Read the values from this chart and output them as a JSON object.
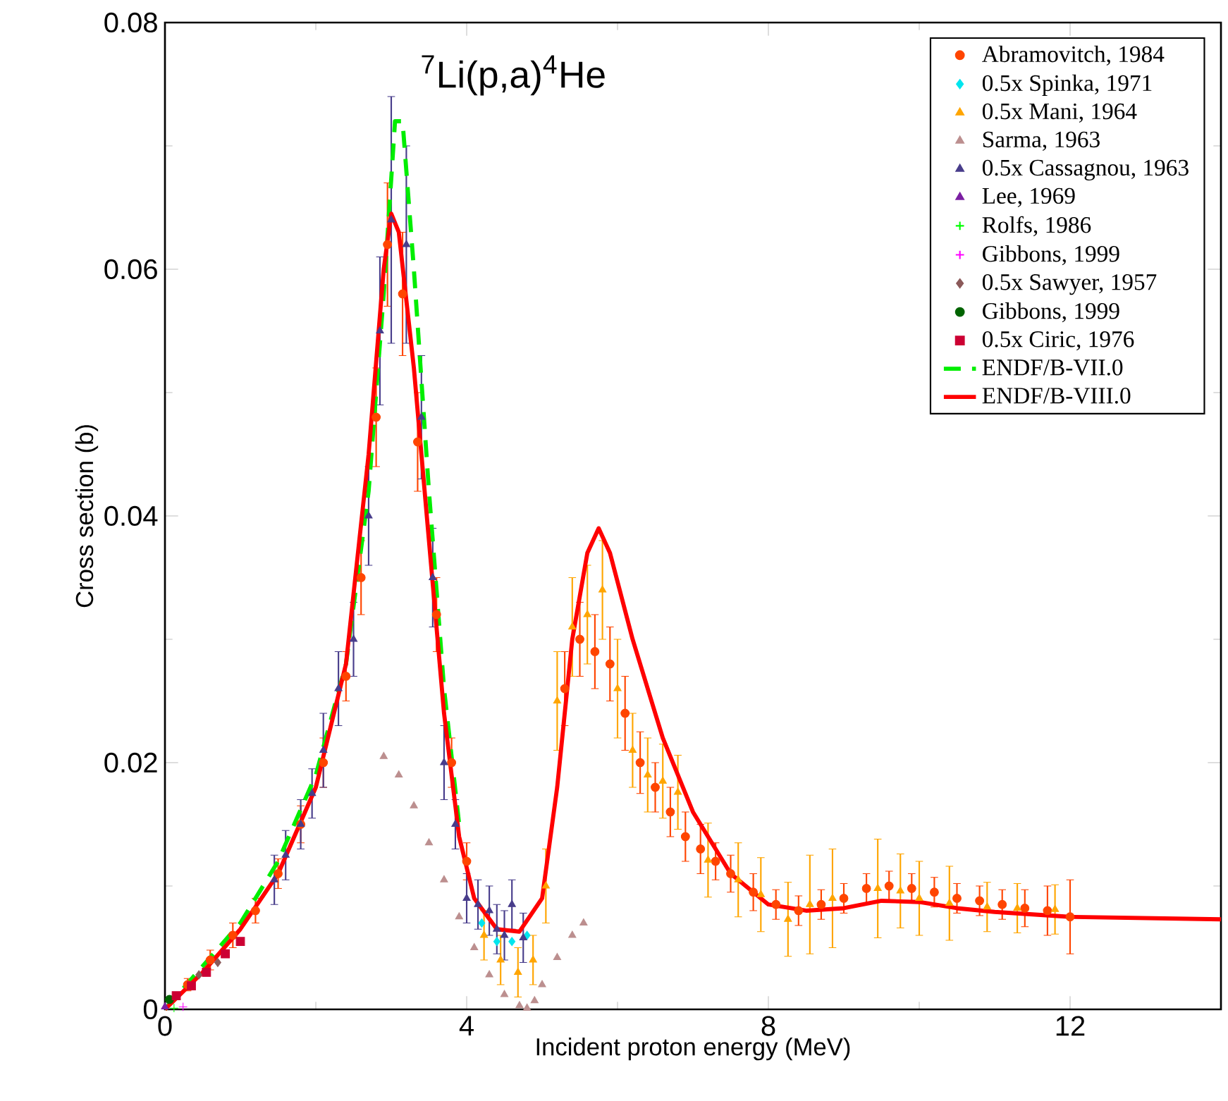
{
  "chart_data": {
    "type": "scatter",
    "title": "$^{7}$Li(p,a)$^{4}$He",
    "xlabel": "Incident proton energy (MeV)",
    "ylabel": "Cross section (b)",
    "xlim": [
      0,
      14
    ],
    "xticks": [
      0,
      4,
      8,
      12
    ],
    "ylim": [
      0,
      0.08
    ],
    "yticks": [
      0,
      0.02,
      0.04,
      0.06,
      0.08
    ],
    "legend": "top right",
    "series": [
      {
        "name": "Abramovitch, 1984",
        "color": "#ff4500",
        "marker": "circle",
        "x": [
          0.3,
          0.6,
          0.9,
          1.2,
          1.5,
          1.8,
          2.1,
          2.4,
          2.6,
          2.8,
          2.95,
          3.15,
          3.35,
          3.6,
          3.8,
          4.0,
          5.3,
          5.5,
          5.7,
          5.9,
          6.1,
          6.3,
          6.5,
          6.7,
          6.9,
          7.1,
          7.3,
          7.5,
          7.8,
          8.1,
          8.4,
          8.7,
          9.0,
          9.3,
          9.6,
          9.9,
          10.2,
          10.5,
          10.8,
          11.1,
          11.4,
          11.7,
          12.0
        ],
        "values": [
          0.002,
          0.004,
          0.006,
          0.008,
          0.011,
          0.015,
          0.02,
          0.027,
          0.035,
          0.048,
          0.062,
          0.058,
          0.046,
          0.032,
          0.02,
          0.012,
          0.026,
          0.03,
          0.029,
          0.028,
          0.024,
          0.02,
          0.018,
          0.016,
          0.014,
          0.013,
          0.012,
          0.011,
          0.0095,
          0.0085,
          0.008,
          0.0085,
          0.009,
          0.0098,
          0.01,
          0.0098,
          0.0095,
          0.009,
          0.0088,
          0.0085,
          0.0082,
          0.008,
          0.0075
        ],
        "errors": [
          0.0005,
          0.0008,
          0.001,
          0.001,
          0.0012,
          0.0015,
          0.002,
          0.002,
          0.003,
          0.004,
          0.005,
          0.005,
          0.004,
          0.003,
          0.002,
          0.0015,
          0.003,
          0.003,
          0.003,
          0.003,
          0.003,
          0.0025,
          0.002,
          0.002,
          0.002,
          0.002,
          0.0015,
          0.0015,
          0.0015,
          0.0012,
          0.0012,
          0.0012,
          0.0012,
          0.0012,
          0.0012,
          0.0012,
          0.0012,
          0.0012,
          0.0012,
          0.0012,
          0.0015,
          0.002,
          0.003
        ]
      },
      {
        "name": "0.5x Spinka, 1971",
        "color": "#00e5ee",
        "marker": "diamond",
        "x": [
          4.2,
          4.4,
          4.6,
          4.8
        ],
        "values": [
          0.007,
          0.0055,
          0.0055,
          0.006
        ]
      },
      {
        "name": "0.5x Mani, 1964",
        "color": "#ffa500",
        "marker": "triangle",
        "x": [
          4.23,
          4.45,
          4.68,
          4.88,
          5.05,
          5.2,
          5.4,
          5.6,
          5.8,
          6.0,
          6.2,
          6.4,
          6.6,
          6.8,
          7.2,
          7.6,
          7.9,
          8.26,
          8.55,
          8.85,
          9.45,
          9.75,
          10.0,
          10.4,
          10.9,
          11.3,
          11.8
        ],
        "values": [
          0.006,
          0.004,
          0.003,
          0.004,
          0.01,
          0.025,
          0.031,
          0.032,
          0.034,
          0.026,
          0.021,
          0.019,
          0.0185,
          0.0176,
          0.0121,
          0.0105,
          0.0093,
          0.0073,
          0.0085,
          0.009,
          0.0098,
          0.0096,
          0.009,
          0.0086,
          0.0083,
          0.0082,
          0.0081
        ],
        "errors": [
          0.002,
          0.002,
          0.002,
          0.002,
          0.003,
          0.004,
          0.004,
          0.004,
          0.004,
          0.004,
          0.003,
          0.003,
          0.003,
          0.003,
          0.003,
          0.003,
          0.003,
          0.003,
          0.004,
          0.004,
          0.004,
          0.003,
          0.003,
          0.003,
          0.002,
          0.002,
          0.002
        ]
      },
      {
        "name": "Sarma, 1963",
        "color": "#bc8f8f",
        "marker": "triangle",
        "x": [
          2.9,
          3.1,
          3.3,
          3.5,
          3.7,
          3.9,
          4.1,
          4.3,
          4.5,
          4.7,
          4.8,
          4.9,
          5.0,
          5.2,
          5.4,
          5.55
        ],
        "values": [
          0.0205,
          0.019,
          0.0165,
          0.0135,
          0.0105,
          0.0075,
          0.005,
          0.0028,
          0.0012,
          0.0003,
          0.0001,
          0.0007,
          0.002,
          0.0042,
          0.006,
          0.007
        ]
      },
      {
        "name": "0.5x Cassagnou, 1963",
        "color": "#483d8b",
        "marker": "triangle",
        "x": [
          1.45,
          1.6,
          1.8,
          1.95,
          2.1,
          2.3,
          2.5,
          2.7,
          2.85,
          3.0,
          3.2,
          3.4,
          3.55,
          3.7,
          3.85,
          4.0,
          4.15,
          4.3,
          4.4,
          4.5,
          4.6,
          4.75
        ],
        "values": [
          0.0105,
          0.0125,
          0.015,
          0.0175,
          0.021,
          0.026,
          0.03,
          0.04,
          0.055,
          0.064,
          0.062,
          0.048,
          0.035,
          0.02,
          0.015,
          0.009,
          0.0085,
          0.008,
          0.0065,
          0.006,
          0.0085,
          0.0058
        ],
        "errors": [
          0.002,
          0.002,
          0.002,
          0.002,
          0.003,
          0.003,
          0.003,
          0.004,
          0.006,
          0.01,
          0.008,
          0.005,
          0.004,
          0.003,
          0.002,
          0.002,
          0.002,
          0.002,
          0.002,
          0.002,
          0.002,
          0.002
        ]
      },
      {
        "name": "Lee, 1969",
        "color": "#7b1fa2",
        "marker": "triangle",
        "x": [
          0.0
        ],
        "values": [
          0.0002
        ]
      },
      {
        "name": "Rolfs, 1986",
        "color": "#00ff00",
        "marker": "cross",
        "x": [
          0.12
        ],
        "values": [
          0.0001
        ]
      },
      {
        "name": "Gibbons, 1999",
        "color": "#ff00ff",
        "marker": "cross",
        "x": [
          0.24
        ],
        "values": [
          0.0002
        ]
      },
      {
        "name": "0.5x Sawyer, 1957",
        "color": "#8b5a5a",
        "marker": "diamond",
        "x": [
          0.45,
          0.7
        ],
        "values": [
          0.0028,
          0.0038
        ]
      },
      {
        "name": "Gibbons, 1999",
        "color": "#006400",
        "marker": "circle",
        "x": [
          0.06
        ],
        "values": [
          0.0008
        ]
      },
      {
        "name": "0.5x Ciric, 1976",
        "color": "#cc0033",
        "marker": "square",
        "x": [
          0.15,
          0.35,
          0.55,
          0.8,
          1.0
        ],
        "values": [
          0.0011,
          0.0019,
          0.003,
          0.0045,
          0.0055
        ]
      },
      {
        "name": "ENDF/B-VII.0",
        "type": "line",
        "color": "#00ee00",
        "line_style": "dashed",
        "marker": "none",
        "x": [
          0,
          0.5,
          1,
          1.5,
          2,
          2.4,
          2.7,
          2.9,
          3.05,
          3.15,
          3.3,
          3.5,
          3.7,
          3.9
        ],
        "values": [
          0,
          0.0035,
          0.007,
          0.012,
          0.019,
          0.028,
          0.042,
          0.058,
          0.072,
          0.072,
          0.06,
          0.042,
          0.026,
          0.015
        ]
      },
      {
        "name": "ENDF/B-VIII.0",
        "type": "line",
        "color": "#ff0000",
        "line_style": "solid",
        "marker": "none",
        "x": [
          0,
          0.5,
          1,
          1.5,
          2,
          2.4,
          2.7,
          2.9,
          3.0,
          3.1,
          3.3,
          3.5,
          3.7,
          3.9,
          4.1,
          4.4,
          4.7,
          5.0,
          5.2,
          5.4,
          5.6,
          5.75,
          5.9,
          6.2,
          6.6,
          7,
          7.5,
          8,
          8.5,
          9,
          9.5,
          10,
          10.5,
          11,
          12,
          14
        ],
        "values": [
          0,
          0.003,
          0.0065,
          0.011,
          0.018,
          0.028,
          0.045,
          0.06,
          0.0645,
          0.063,
          0.052,
          0.038,
          0.024,
          0.014,
          0.009,
          0.0065,
          0.0063,
          0.009,
          0.018,
          0.03,
          0.037,
          0.039,
          0.037,
          0.03,
          0.022,
          0.016,
          0.011,
          0.0085,
          0.008,
          0.0082,
          0.0088,
          0.0087,
          0.0082,
          0.0079,
          0.0075,
          0.0073
        ]
      }
    ]
  }
}
